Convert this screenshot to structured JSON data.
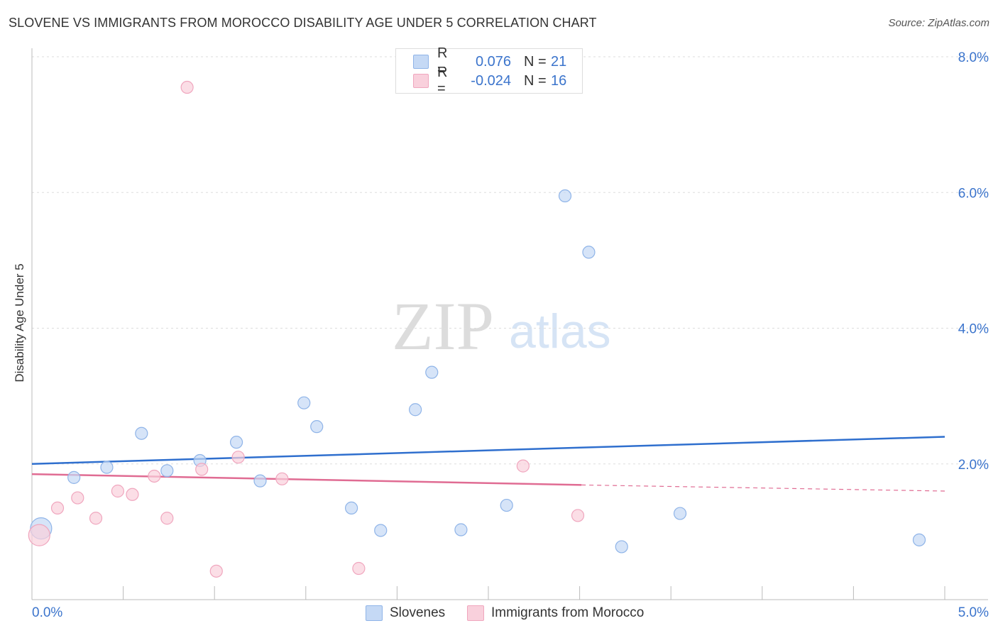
{
  "header": {
    "title": "SLOVENE VS IMMIGRANTS FROM MOROCCO DISABILITY AGE UNDER 5 CORRELATION CHART",
    "source": "Source: ZipAtlas.com"
  },
  "watermark": {
    "zip": "ZIP",
    "atlas": "atlas"
  },
  "legend": [
    {
      "r_label": "R =",
      "r_value": "0.076",
      "n_label": "N =",
      "n_value": "21"
    },
    {
      "r_label": "R =",
      "r_value": "-0.024",
      "n_label": "N =",
      "n_value": "16"
    }
  ],
  "chart_data": {
    "type": "scatter",
    "title": "SLOVENE VS IMMIGRANTS FROM MOROCCO DISABILITY AGE UNDER 5 CORRELATION CHART",
    "xlabel": "",
    "ylabel": "Disability Age Under 5",
    "xlim": [
      0,
      5
    ],
    "ylim": [
      0,
      8
    ],
    "x_tick_labels": [
      "0.0%",
      "5.0%"
    ],
    "y_ticks": [
      2,
      4,
      6,
      8
    ],
    "y_tick_labels": [
      "2.0%",
      "4.0%",
      "6.0%",
      "8.0%"
    ],
    "grid": true,
    "legend_position": "top-center",
    "series": [
      {
        "name": "Slovenes",
        "color": "#8fb4e8",
        "fill": "#c5d9f5",
        "trend_color": "#2f6fce",
        "stats": {
          "R": 0.076,
          "N": 21
        },
        "trend": {
          "x": [
            0,
            5
          ],
          "y": [
            2.0,
            2.4
          ]
        },
        "points": [
          {
            "x": 0.05,
            "y": 1.05,
            "large": true
          },
          {
            "x": 0.23,
            "y": 1.8
          },
          {
            "x": 0.41,
            "y": 1.95
          },
          {
            "x": 0.6,
            "y": 2.45
          },
          {
            "x": 0.74,
            "y": 1.9
          },
          {
            "x": 0.92,
            "y": 2.05
          },
          {
            "x": 1.12,
            "y": 2.32
          },
          {
            "x": 1.25,
            "y": 1.75
          },
          {
            "x": 1.49,
            "y": 2.9
          },
          {
            "x": 1.56,
            "y": 2.55
          },
          {
            "x": 1.75,
            "y": 1.35
          },
          {
            "x": 1.91,
            "y": 1.02
          },
          {
            "x": 2.1,
            "y": 2.8
          },
          {
            "x": 2.19,
            "y": 3.35
          },
          {
            "x": 2.35,
            "y": 1.03
          },
          {
            "x": 2.6,
            "y": 1.39
          },
          {
            "x": 2.92,
            "y": 5.95
          },
          {
            "x": 3.05,
            "y": 5.12
          },
          {
            "x": 3.23,
            "y": 0.78
          },
          {
            "x": 3.55,
            "y": 1.27
          },
          {
            "x": 4.86,
            "y": 0.88
          }
        ]
      },
      {
        "name": "Immigrants from Morocco",
        "color": "#f0a6be",
        "fill": "#f9d0dc",
        "trend_color": "#e06c93",
        "stats": {
          "R": -0.024,
          "N": 16
        },
        "trend": {
          "x": [
            0,
            3.01
          ],
          "y": [
            1.85,
            1.69
          ]
        },
        "trend_dashed": {
          "x": [
            3.01,
            5
          ],
          "y": [
            1.69,
            1.6
          ]
        },
        "points": [
          {
            "x": 0.04,
            "y": 0.95,
            "large": true
          },
          {
            "x": 0.14,
            "y": 1.35
          },
          {
            "x": 0.25,
            "y": 1.5
          },
          {
            "x": 0.35,
            "y": 1.2
          },
          {
            "x": 0.47,
            "y": 1.6
          },
          {
            "x": 0.55,
            "y": 1.55
          },
          {
            "x": 0.67,
            "y": 1.82
          },
          {
            "x": 0.74,
            "y": 1.2
          },
          {
            "x": 0.85,
            "y": 7.55
          },
          {
            "x": 0.93,
            "y": 1.92
          },
          {
            "x": 1.01,
            "y": 0.42
          },
          {
            "x": 1.13,
            "y": 2.1
          },
          {
            "x": 1.37,
            "y": 1.78
          },
          {
            "x": 1.79,
            "y": 0.46
          },
          {
            "x": 2.69,
            "y": 1.97
          },
          {
            "x": 2.99,
            "y": 1.24
          }
        ]
      }
    ]
  }
}
